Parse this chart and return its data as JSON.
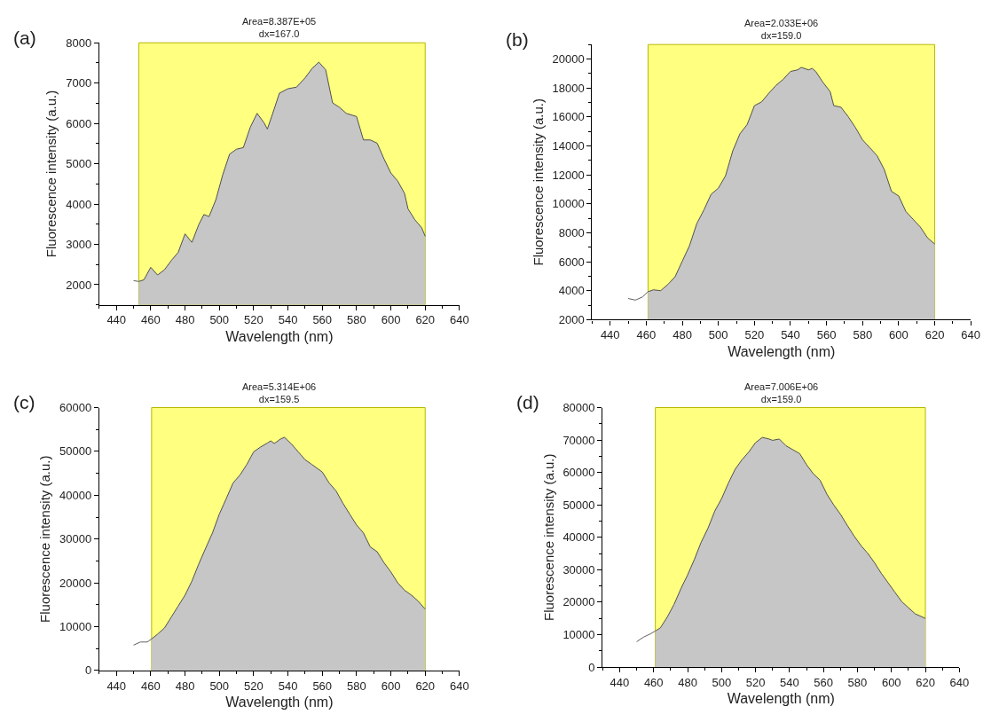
{
  "chart_data": [
    {
      "type": "area",
      "title": "Area=8.387E+05",
      "subtitle": "dx=167.0",
      "xlabel": "Wavelength (nm)",
      "ylabel": "Fluorescence intensity (a.u.)",
      "annotations": [
        "(a)"
      ],
      "xlim": [
        430,
        640
      ],
      "xticks": [
        440,
        460,
        480,
        500,
        520,
        540,
        560,
        580,
        600,
        620,
        640
      ],
      "ylim": [
        1500,
        8000
      ],
      "yticks": [
        2000,
        3000,
        4000,
        5000,
        6000,
        7000,
        8000
      ],
      "bands": [
        {
          "axis": "x",
          "from": 453,
          "to": 620,
          "color": "#ffff80"
        }
      ],
      "series": [
        {
          "type": "line",
          "color": "#606060",
          "x": [
            450,
            453
          ],
          "values": [
            2100,
            2080
          ]
        },
        {
          "color": "#c6c6c6",
          "x": [
            453,
            456,
            460,
            464,
            468,
            472,
            476,
            480,
            484,
            488,
            491,
            494,
            498,
            502,
            506,
            510,
            514,
            518,
            522,
            526,
            528,
            532,
            535,
            540,
            545,
            550,
            554,
            558,
            562,
            566,
            570,
            574,
            580,
            584,
            588,
            592,
            596,
            600,
            604,
            608,
            610,
            614,
            618,
            620
          ],
          "values": [
            2080,
            2120,
            2430,
            2240,
            2370,
            2600,
            2800,
            3260,
            3050,
            3490,
            3740,
            3690,
            4110,
            4730,
            5240,
            5360,
            5400,
            5900,
            6250,
            6020,
            5860,
            6360,
            6750,
            6860,
            6900,
            7130,
            7360,
            7520,
            7330,
            6510,
            6400,
            6250,
            6170,
            5590,
            5590,
            5510,
            5120,
            4770,
            4570,
            4260,
            3880,
            3610,
            3410,
            3200
          ]
        }
      ]
    },
    {
      "type": "area",
      "title": "Area=2.033E+06",
      "subtitle": "dx=159.0",
      "xlabel": "Wavelength (nm)",
      "ylabel": "Fluorescence intensity (a.u.)",
      "annotations": [
        "(b)"
      ],
      "xlim": [
        430,
        640
      ],
      "xticks": [
        440,
        460,
        480,
        500,
        520,
        540,
        560,
        580,
        600,
        620,
        640
      ],
      "ylim": [
        2000,
        21000
      ],
      "yticks": [
        2000,
        4000,
        6000,
        8000,
        10000,
        12000,
        14000,
        16000,
        18000,
        20000
      ],
      "bands": [
        {
          "axis": "x",
          "from": 461,
          "to": 620,
          "color": "#ffff80"
        }
      ],
      "series": [
        {
          "type": "line",
          "color": "#606060",
          "x": [
            450,
            454,
            458,
            461
          ],
          "values": [
            3460,
            3350,
            3570,
            3930
          ]
        },
        {
          "color": "#c6c6c6",
          "x": [
            461,
            464,
            468,
            472,
            476,
            480,
            484,
            488,
            492,
            496,
            500,
            504,
            508,
            512,
            516,
            520,
            524,
            528,
            532,
            536,
            540,
            544,
            546,
            550,
            552,
            554,
            558,
            562,
            564,
            568,
            572,
            576,
            580,
            584,
            588,
            592,
            596,
            600,
            604,
            608,
            612,
            616,
            620
          ],
          "values": [
            3930,
            4060,
            4000,
            4430,
            4960,
            6040,
            7110,
            8620,
            9580,
            10660,
            11080,
            11940,
            13660,
            14840,
            15480,
            16780,
            17040,
            17640,
            18180,
            18600,
            19140,
            19250,
            19420,
            19250,
            19350,
            19140,
            18390,
            17750,
            16780,
            16670,
            16020,
            15270,
            14410,
            13870,
            13330,
            12370,
            10860,
            10540,
            9470,
            8930,
            8400,
            7650,
            7220
          ]
        }
      ]
    },
    {
      "type": "area",
      "title": "Area=5.314E+06",
      "subtitle": "dx=159.5",
      "xlabel": "Wavelength (nm)",
      "ylabel": "Fluorescence intensity (a.u.)",
      "annotations": [
        "(c)"
      ],
      "xlim": [
        430,
        640
      ],
      "xticks": [
        440,
        460,
        480,
        500,
        520,
        540,
        560,
        580,
        600,
        620,
        640
      ],
      "ylim": [
        0,
        60000
      ],
      "yticks": [
        0,
        10000,
        20000,
        30000,
        40000,
        50000,
        60000
      ],
      "bands": [
        {
          "axis": "x",
          "from": 460.5,
          "to": 620,
          "color": "#ffff80"
        }
      ],
      "series": [
        {
          "type": "line",
          "color": "#606060",
          "x": [
            450,
            454,
            458,
            460.5
          ],
          "values": [
            5800,
            6500,
            6500,
            7200
          ]
        },
        {
          "color": "#c6c6c6",
          "x": [
            460.5,
            464,
            468,
            472,
            476,
            480,
            484,
            488,
            492,
            496,
            500,
            504,
            508,
            512,
            516,
            520,
            524,
            528,
            530,
            532,
            536,
            538,
            542,
            546,
            550,
            554,
            560,
            564,
            568,
            572,
            576,
            580,
            584,
            588,
            592,
            596,
            600,
            604,
            608,
            612,
            616,
            620
          ],
          "values": [
            7200,
            8300,
            9700,
            12200,
            14700,
            17200,
            20400,
            24300,
            27900,
            31400,
            35700,
            39200,
            42800,
            44600,
            47000,
            49900,
            51000,
            51900,
            52400,
            51800,
            52900,
            53200,
            51700,
            49900,
            48100,
            47000,
            45300,
            42800,
            41000,
            38200,
            35700,
            33200,
            31400,
            28200,
            27100,
            24600,
            22500,
            20000,
            18300,
            17200,
            15800,
            14000
          ]
        }
      ]
    },
    {
      "type": "area",
      "title": "Area=7.006E+06",
      "subtitle": "dx=159.0",
      "xlabel": "Wavelength (nm)",
      "ylabel": "Fluorescence intensity (a.u.)",
      "annotations": [
        "(d)"
      ],
      "xlim": [
        430,
        640
      ],
      "xticks": [
        440,
        460,
        480,
        500,
        520,
        540,
        560,
        580,
        600,
        620,
        640
      ],
      "ylim": [
        0,
        80000
      ],
      "yticks": [
        0,
        10000,
        20000,
        30000,
        40000,
        50000,
        60000,
        70000,
        80000
      ],
      "bands": [
        {
          "axis": "x",
          "from": 461,
          "to": 620,
          "color": "#ffff80"
        }
      ],
      "series": [
        {
          "type": "line",
          "color": "#606060",
          "x": [
            450,
            454,
            458,
            461
          ],
          "values": [
            7800,
            9200,
            10200,
            11100
          ]
        },
        {
          "color": "#c6c6c6",
          "x": [
            461,
            464,
            468,
            472,
            476,
            480,
            484,
            488,
            492,
            496,
            500,
            504,
            508,
            512,
            516,
            520,
            524,
            528,
            530,
            534,
            538,
            542,
            546,
            550,
            554,
            558,
            562,
            566,
            570,
            574,
            578,
            582,
            586,
            590,
            594,
            598,
            602,
            606,
            610,
            614,
            620
          ],
          "values": [
            11100,
            12100,
            15400,
            19300,
            24100,
            28400,
            33200,
            38500,
            42800,
            48100,
            51900,
            56700,
            61000,
            63900,
            66300,
            69200,
            70800,
            70300,
            69900,
            70300,
            68200,
            67000,
            65800,
            62400,
            59600,
            57600,
            53300,
            50000,
            47100,
            43700,
            40400,
            37500,
            35100,
            32200,
            28900,
            26000,
            23100,
            20200,
            18300,
            16400,
            15000
          ]
        }
      ]
    }
  ]
}
